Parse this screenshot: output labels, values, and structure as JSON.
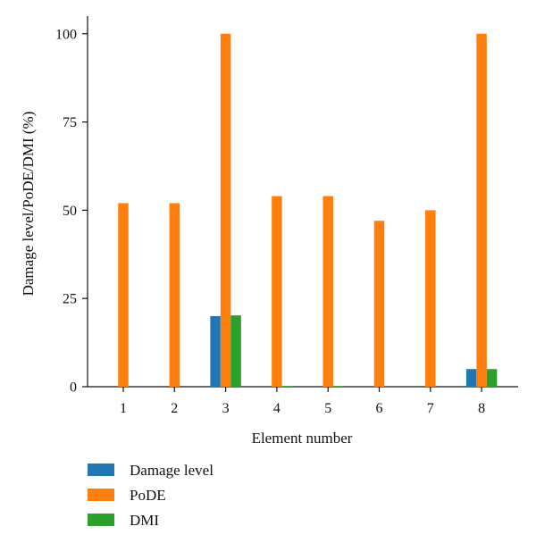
{
  "chart_data": {
    "type": "bar",
    "categories": [
      "1",
      "2",
      "3",
      "4",
      "5",
      "6",
      "7",
      "8"
    ],
    "series": [
      {
        "name": "Damage level",
        "color": "#1f77b4",
        "values": [
          0,
          0,
          20,
          0,
          0,
          0,
          0,
          5
        ]
      },
      {
        "name": "PoDE",
        "color": "#ff7f0e",
        "values": [
          52,
          52,
          100,
          54,
          54,
          47,
          50,
          100
        ]
      },
      {
        "name": "DMI",
        "color": "#2ca02c",
        "values": [
          0,
          0,
          20.2,
          0.2,
          0.2,
          0,
          0,
          5
        ]
      }
    ],
    "yticks": [
      "0",
      "25",
      "50",
      "75",
      "100"
    ],
    "ylim": [
      0,
      105
    ],
    "xlabel": "Element number",
    "ylabel": "Damage level/PoDE/DMI (%)",
    "grid": false,
    "legend_position": "bottom-left"
  }
}
